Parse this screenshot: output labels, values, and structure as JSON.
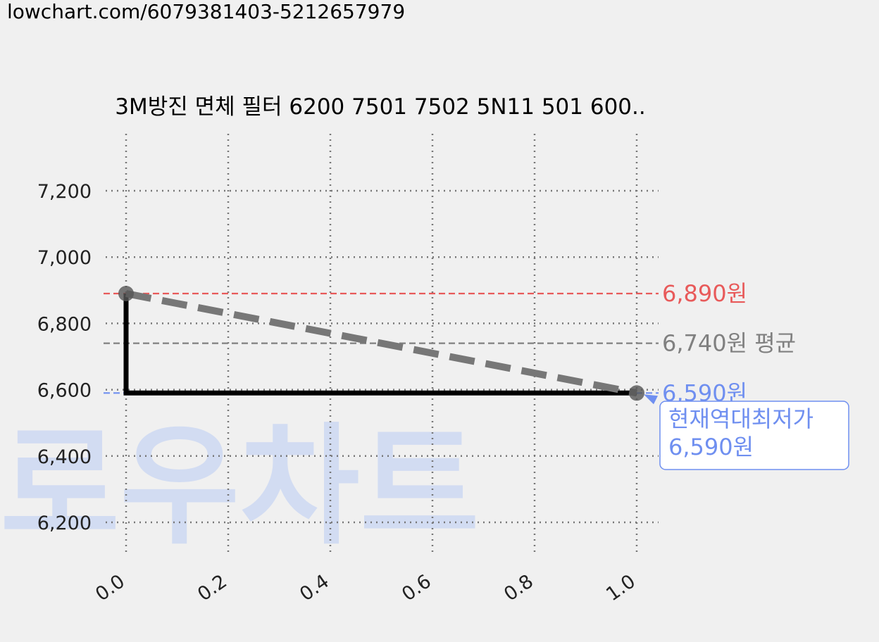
{
  "url": "lowchart.com/6079381403-5212657979",
  "watermark": "로우차트",
  "chart_data": {
    "type": "line",
    "title": "3M방진 면체 필터 6200 7501 7502 5N11 501 600..",
    "xlabel": "",
    "ylabel": "",
    "xlim": [
      0.0,
      1.0
    ],
    "ylim": [
      6100,
      7350
    ],
    "x_ticks": [
      "0.0",
      "0.2",
      "0.4",
      "0.6",
      "0.8",
      "1.0"
    ],
    "y_ticks": [
      "6,200",
      "6,400",
      "6,600",
      "6,800",
      "7,000",
      "7,200"
    ],
    "y_tick_values": [
      6200,
      6400,
      6600,
      6800,
      7000,
      7200
    ],
    "grid": true,
    "series": [
      {
        "style": "step",
        "x": [
          0.0,
          0.0,
          1.0
        ],
        "y": [
          6890,
          6590,
          6590
        ],
        "color": "#000000"
      },
      {
        "style": "dashed-trend",
        "x": [
          0.0,
          1.0
        ],
        "y": [
          6890,
          6590
        ],
        "color": "#777777"
      }
    ],
    "points": [
      {
        "x": 0.0,
        "y": 6890
      },
      {
        "x": 1.0,
        "y": 6590
      }
    ],
    "reference_lines": [
      {
        "value": 6890,
        "label": "6,890원",
        "color": "#e85a5a"
      },
      {
        "value": 6740,
        "label": "6,740원 평균",
        "color": "#808080"
      },
      {
        "value": 6590,
        "label": "6,590원",
        "color": "#6f8ff0"
      }
    ],
    "annotation": {
      "line1": "현재역대최저가",
      "line2": "6,590원",
      "x": 1.0,
      "y": 6590,
      "color": "#6f8ff0"
    }
  }
}
